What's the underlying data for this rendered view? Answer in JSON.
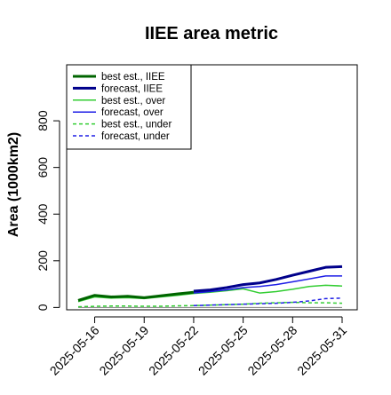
{
  "chart_data": {
    "type": "line",
    "title": "IIEE area metric",
    "xlabel": "",
    "ylabel": "Area (1000km2)",
    "ylim": [
      -10,
      1040
    ],
    "yticks": [
      0,
      200,
      400,
      600,
      800
    ],
    "grid": false,
    "legend_position": "top-left",
    "x": [
      "2025-05-15",
      "2025-05-16",
      "2025-05-17",
      "2025-05-18",
      "2025-05-19",
      "2025-05-20",
      "2025-05-21",
      "2025-05-22",
      "2025-05-23",
      "2025-05-24",
      "2025-05-25",
      "2025-05-26",
      "2025-05-27",
      "2025-05-28",
      "2025-05-29",
      "2025-05-30",
      "2025-05-31"
    ],
    "xticks": [
      {
        "label": "2025-05-16",
        "color": "#000000"
      },
      {
        "label": "2025-05-19",
        "color": "#000000"
      },
      {
        "label": "2025-05-22",
        "color": "#228B22"
      },
      {
        "label": "2025-05-25",
        "color": "#000000"
      },
      {
        "label": "2025-05-28",
        "color": "#000000"
      },
      {
        "label": "2025-05-31",
        "color": "#000000"
      }
    ],
    "reference_line": {
      "y": 0,
      "color": "#808080"
    },
    "series": [
      {
        "name": "best est., IIEE",
        "color": "#006400",
        "style": "solid",
        "width": 3,
        "values": [
          30,
          52,
          45,
          48,
          42,
          50,
          58,
          65,
          null,
          null,
          null,
          null,
          null,
          null,
          null,
          null,
          null
        ]
      },
      {
        "name": "forecast, IIEE",
        "color": "#00008B",
        "style": "solid",
        "width": 3,
        "values": [
          null,
          null,
          null,
          null,
          null,
          null,
          null,
          70,
          75,
          85,
          98,
          105,
          120,
          138,
          155,
          172,
          175
        ]
      },
      {
        "name": "best est., over",
        "color": "#32CD32",
        "style": "solid",
        "width": 1.5,
        "values": [
          25,
          45,
          40,
          42,
          38,
          45,
          52,
          60,
          65,
          72,
          80,
          62,
          68,
          78,
          90,
          95,
          92
        ]
      },
      {
        "name": "forecast, over",
        "color": "#1E1EE6",
        "style": "solid",
        "width": 1.5,
        "values": [
          null,
          null,
          null,
          null,
          null,
          null,
          null,
          62,
          68,
          75,
          85,
          90,
          98,
          110,
          122,
          135,
          135
        ]
      },
      {
        "name": "best est., under",
        "color": "#32CD32",
        "style": "dashed",
        "width": 1.5,
        "values": [
          3,
          5,
          6,
          6,
          5,
          5,
          7,
          8,
          10,
          12,
          14,
          18,
          20,
          22,
          20,
          20,
          18
        ]
      },
      {
        "name": "forecast, under",
        "color": "#1E1EE6",
        "style": "dashed",
        "width": 1.5,
        "values": [
          null,
          null,
          null,
          null,
          null,
          null,
          null,
          8,
          10,
          12,
          14,
          16,
          18,
          22,
          28,
          38,
          40
        ]
      }
    ]
  }
}
